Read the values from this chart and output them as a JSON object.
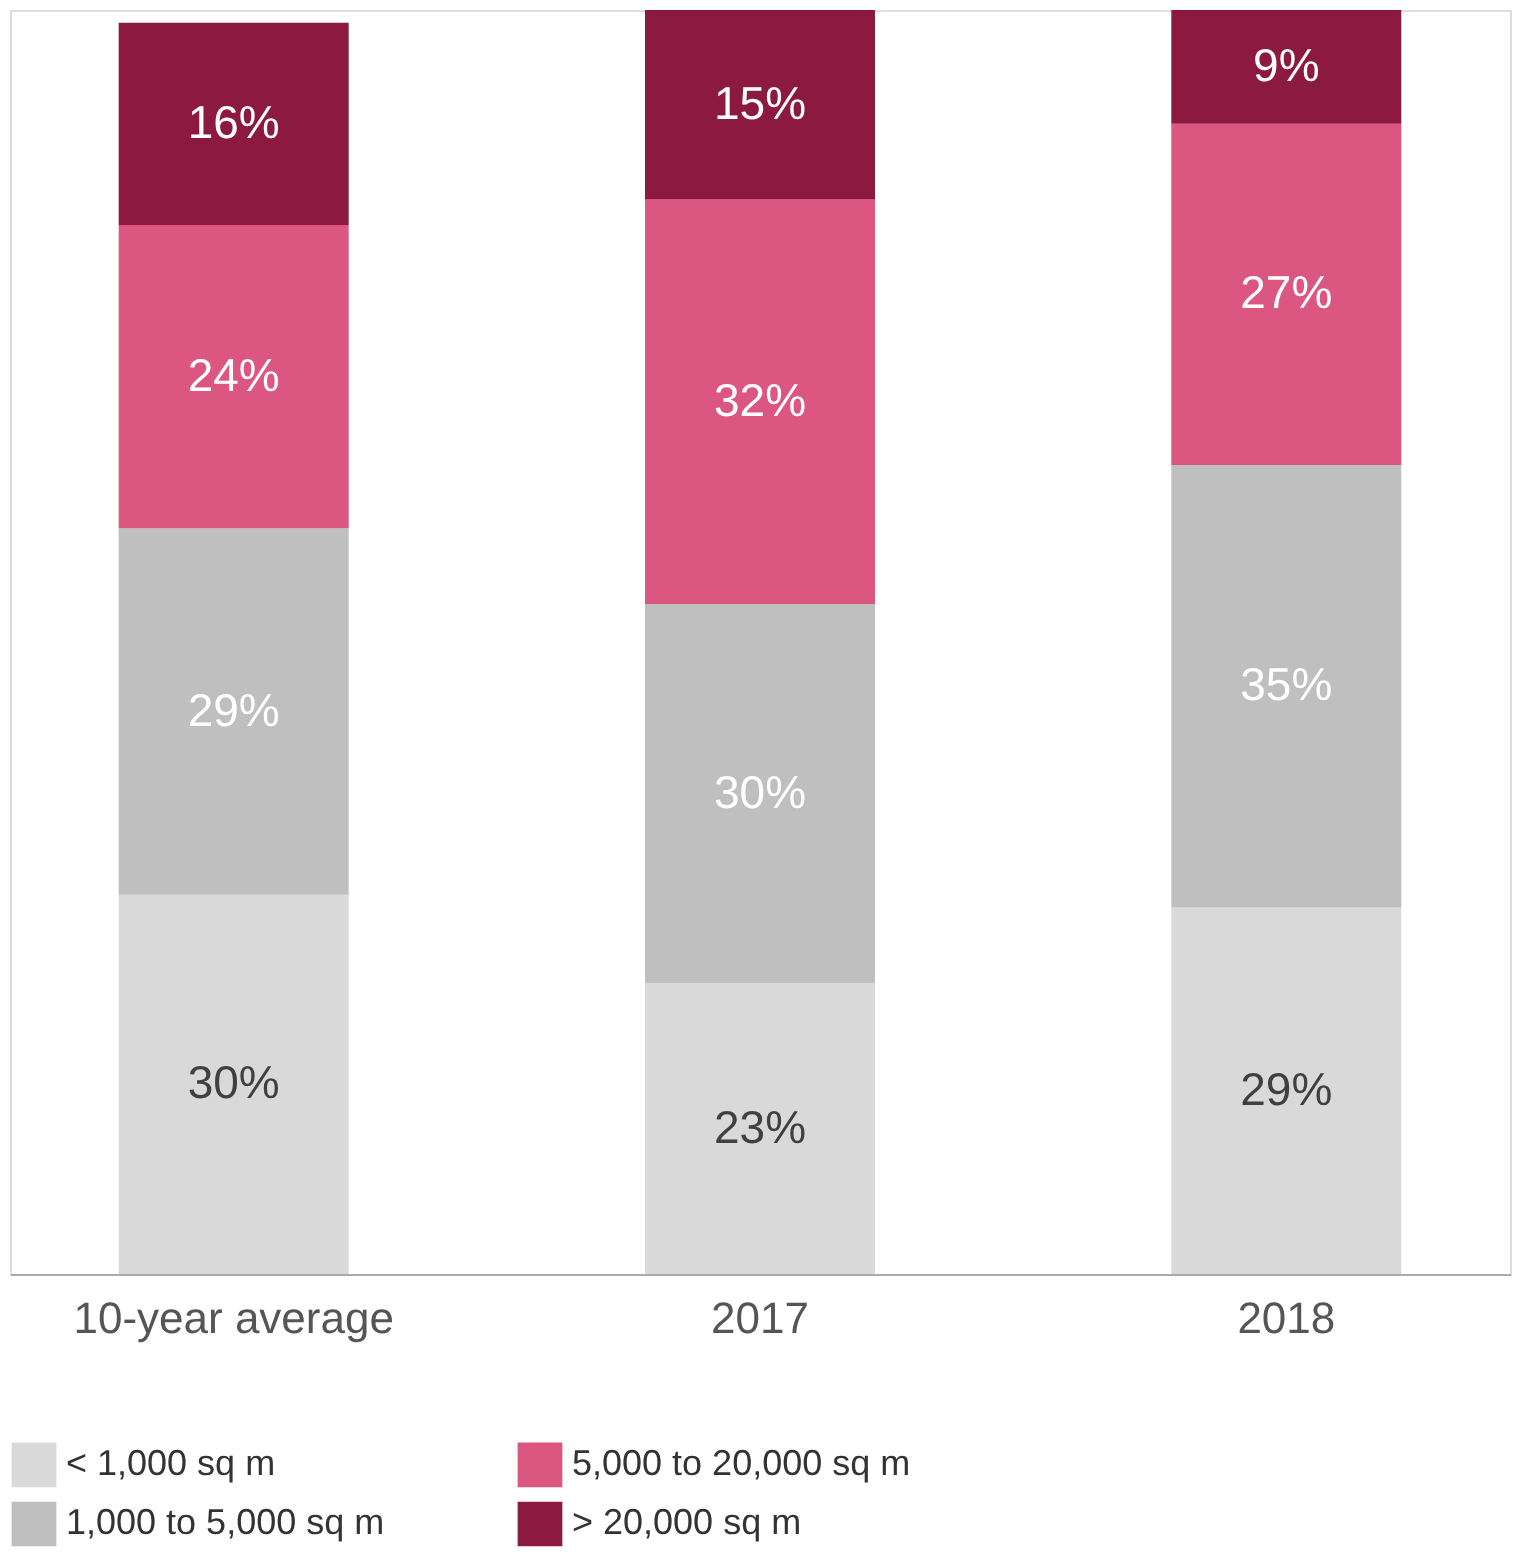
{
  "chart_data": {
    "type": "bar",
    "stacked": true,
    "categories": [
      "10-year average",
      "2017",
      "2018"
    ],
    "series": [
      {
        "name": "< 1,000 sq m",
        "color": "#d9d9d9",
        "values": [
          30,
          23,
          29
        ],
        "value_labels": [
          "30%",
          "23%",
          "29%"
        ]
      },
      {
        "name": "1,000 to 5,000  sq m",
        "color": "#bfbfbf",
        "values": [
          29,
          30,
          35
        ],
        "value_labels": [
          "29%",
          "30%",
          "35%"
        ]
      },
      {
        "name": "5,000 to 20,000  sq m",
        "color": "#dc5682",
        "values": [
          24,
          32,
          27
        ],
        "value_labels": [
          "24%",
          "32%",
          "27%"
        ]
      },
      {
        "name": "> 20,000  sq m",
        "color": "#8c1a40",
        "values": [
          16,
          15,
          9
        ],
        "value_labels": [
          "16%",
          "15%",
          "9%"
        ]
      }
    ],
    "tick_labels": "x",
    "grid": false,
    "legend": "bottom"
  }
}
